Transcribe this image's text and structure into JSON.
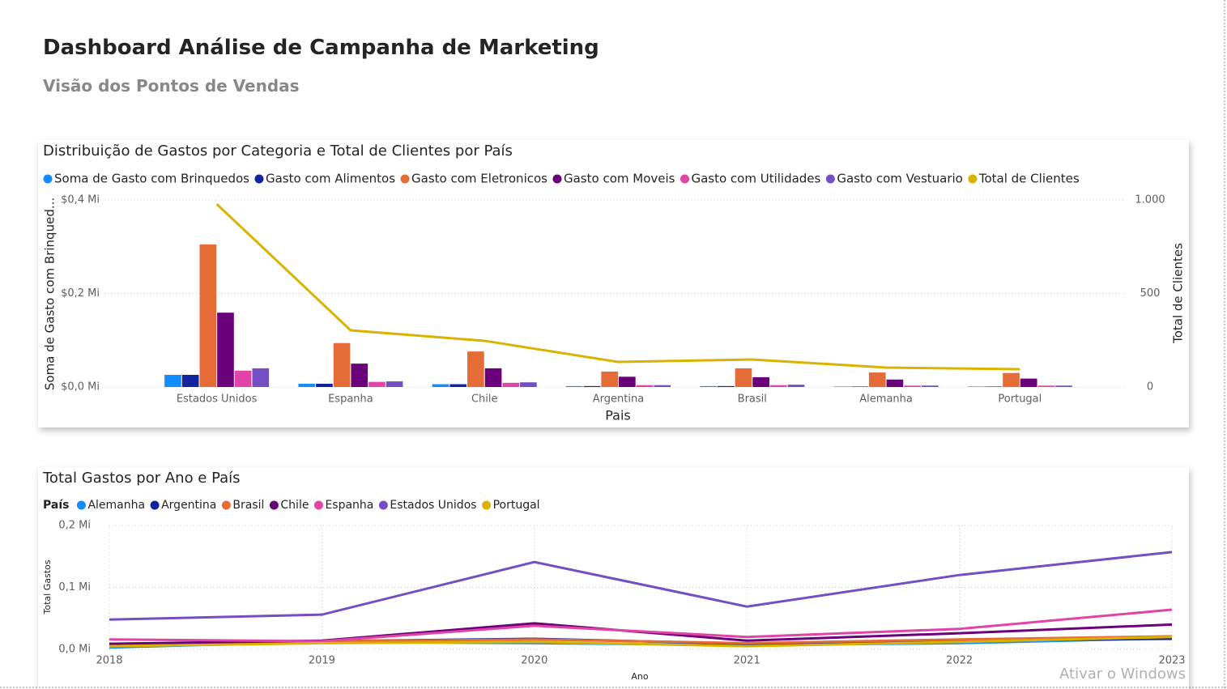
{
  "header": {
    "title": "Dashboard Análise de Campanha de Marketing",
    "subtitle": "Visão dos Pontos de Vendas"
  },
  "watermark": "Ativar o Windows",
  "chart_data": [
    {
      "type": "bar",
      "title": "Distribuição de Gastos por Categoria e Total de Clientes por País",
      "x_label": "Pais",
      "y_label": "Soma de Gasto com Brinqued...",
      "y2_label": "Total de Clientes",
      "categories": [
        "Estados Unidos",
        "Espanha",
        "Chile",
        "Argentina",
        "Brasil",
        "Alemanha",
        "Portugal"
      ],
      "ylim": [
        0,
        400000
      ],
      "yticks": [
        {
          "value": 0,
          "label": "$0,0 Mi"
        },
        {
          "value": 200000,
          "label": "$0,2 Mi"
        },
        {
          "value": 400000,
          "label": "$0,4 Mi"
        }
      ],
      "y2lim": [
        0,
        1000
      ],
      "y2ticks": [
        0,
        500,
        {
          "value": 1000,
          "label": "1.000"
        }
      ],
      "grid": true,
      "series": [
        {
          "name": "Soma de Gasto com Brinquedos",
          "color": "#118DFF",
          "values": [
            26000,
            7000,
            6000,
            2000,
            2000,
            1000,
            1000
          ]
        },
        {
          "name": "Gasto com Alimentos",
          "color": "#12239E",
          "values": [
            26000,
            7000,
            6000,
            2000,
            2000,
            1000,
            1000
          ]
        },
        {
          "name": "Gasto com Eletronicos",
          "color": "#E66C37",
          "values": [
            305000,
            94000,
            76000,
            33000,
            40000,
            31000,
            30000
          ]
        },
        {
          "name": "Gasto com Moveis",
          "color": "#6B007B",
          "values": [
            159000,
            50000,
            40000,
            22000,
            21000,
            16000,
            18000
          ]
        },
        {
          "name": "Gasto com Utilidades",
          "color": "#E044A7",
          "values": [
            35000,
            11000,
            9000,
            4000,
            4000,
            3000,
            3000
          ]
        },
        {
          "name": "Gasto com Vestuario",
          "color": "#744EC2",
          "values": [
            40000,
            12000,
            10000,
            4000,
            5000,
            3000,
            3000
          ]
        },
        {
          "name": "Total de Clientes",
          "color": "#D9B300",
          "type": "line",
          "axis": "y2",
          "values": [
            978,
            303,
            247,
            134,
            147,
            104,
            95
          ]
        }
      ]
    },
    {
      "type": "line",
      "title": "Total Gastos por Ano e País",
      "legend_title": "País",
      "x_label": "Ano",
      "y_label": "Total Gastos",
      "x": [
        2018,
        2019,
        2020,
        2021,
        2022,
        2023
      ],
      "xlim": [
        2018,
        2023
      ],
      "xticks": [
        2018,
        2019,
        2020,
        2021,
        2022,
        2023
      ],
      "ylim": [
        0,
        200000
      ],
      "yticks": [
        {
          "value": 0,
          "label": "0,0 Mi"
        },
        {
          "value": 100000,
          "label": "0,1 Mi"
        },
        {
          "value": 200000,
          "label": "0,2 Mi"
        }
      ],
      "grid": true,
      "series": [
        {
          "name": "Alemanha",
          "color": "#118DFF",
          "values": [
            3000,
            12000,
            10000,
            7000,
            10000,
            18000
          ]
        },
        {
          "name": "Argentina",
          "color": "#12239E",
          "values": [
            7000,
            13000,
            17000,
            9000,
            14000,
            17000
          ]
        },
        {
          "name": "Brasil",
          "color": "#E66C37",
          "values": [
            7000,
            13000,
            16000,
            10000,
            16000,
            21000
          ]
        },
        {
          "name": "Chile",
          "color": "#6B007B",
          "values": [
            9000,
            14000,
            42000,
            14000,
            26000,
            40000
          ]
        },
        {
          "name": "Espanha",
          "color": "#E044A7",
          "values": [
            16000,
            13000,
            38000,
            20000,
            33000,
            64000
          ]
        },
        {
          "name": "Estados Unidos",
          "color": "#744EC2",
          "values": [
            48000,
            56000,
            141000,
            69000,
            120000,
            157000
          ]
        },
        {
          "name": "Portugal",
          "color": "#D9B300",
          "values": [
            5000,
            10000,
            12000,
            5000,
            12000,
            20000
          ]
        }
      ]
    }
  ]
}
